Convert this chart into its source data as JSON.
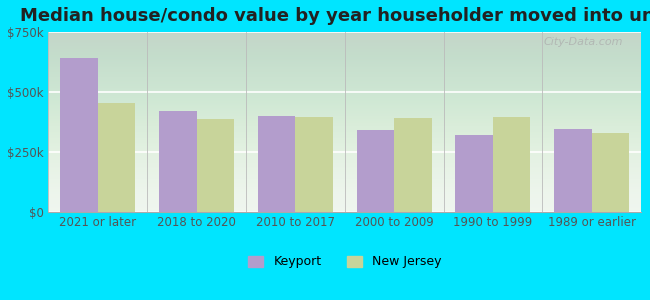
{
  "title": "Median house/condo value by year householder moved into unit",
  "categories": [
    "2021 or later",
    "2018 to 2020",
    "2010 to 2017",
    "2000 to 2009",
    "1990 to 1999",
    "1989 or earlier"
  ],
  "keyport_values": [
    640000,
    420000,
    400000,
    340000,
    320000,
    345000
  ],
  "nj_values": [
    455000,
    385000,
    395000,
    390000,
    395000,
    330000
  ],
  "keyport_color": "#b39dcc",
  "nj_color": "#c8d49a",
  "background_color": "#00e5ff",
  "ylim": [
    0,
    750000
  ],
  "yticks": [
    0,
    250000,
    500000,
    750000
  ],
  "ytick_labels": [
    "$0",
    "$250k",
    "$500k",
    "$750k"
  ],
  "legend_keyport": "Keyport",
  "legend_nj": "New Jersey",
  "title_fontsize": 13,
  "tick_fontsize": 8.5,
  "legend_fontsize": 9,
  "bar_width": 0.38
}
